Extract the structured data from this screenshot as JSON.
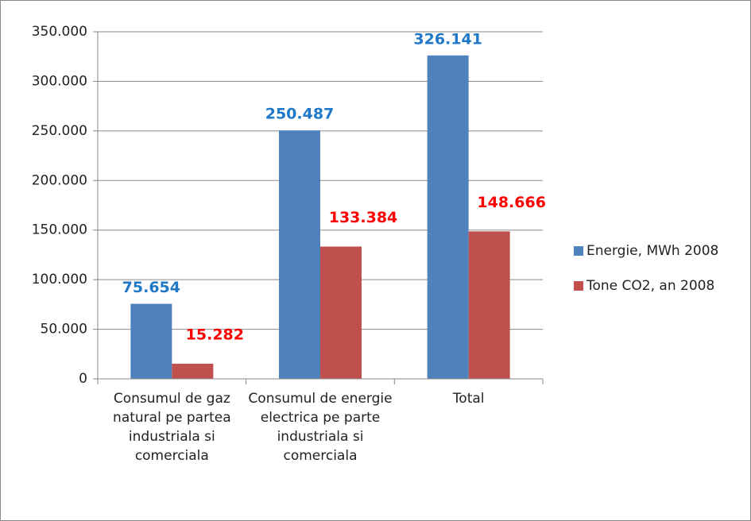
{
  "chart_data": {
    "type": "bar",
    "categories": [
      "Consumul de gaz natural pe partea industriala si comerciala",
      "Consumul de energie electrica pe parte industriala si comerciala",
      "Total"
    ],
    "series": [
      {
        "name": "Energie, MWh 2008",
        "color": "#4f81bd",
        "label_color": "#1f78c8",
        "values": [
          75654,
          250487,
          326141
        ],
        "value_labels": [
          "75.654",
          "250.487",
          "326.141"
        ]
      },
      {
        "name": "Tone CO2, an 2008",
        "color": "#c0504d",
        "label_color": "#ff0000",
        "values": [
          15282,
          133384,
          148666
        ],
        "value_labels": [
          "15.282",
          "133.384",
          "148.666"
        ]
      }
    ],
    "ylim": [
      0,
      350000
    ],
    "yticks": [
      0,
      {
        "value": 50000,
        "label": "50.000"
      },
      {
        "value": 100000,
        "label": "100.000"
      },
      {
        "value": 150000,
        "label": "150.000"
      },
      {
        "value": 200000,
        "label": "200.000"
      },
      {
        "value": 250000,
        "label": "250.000"
      },
      {
        "value": 300000,
        "label": "300.000"
      },
      {
        "value": 350000,
        "label": "350.000"
      }
    ],
    "grid": true,
    "legend": "right"
  }
}
